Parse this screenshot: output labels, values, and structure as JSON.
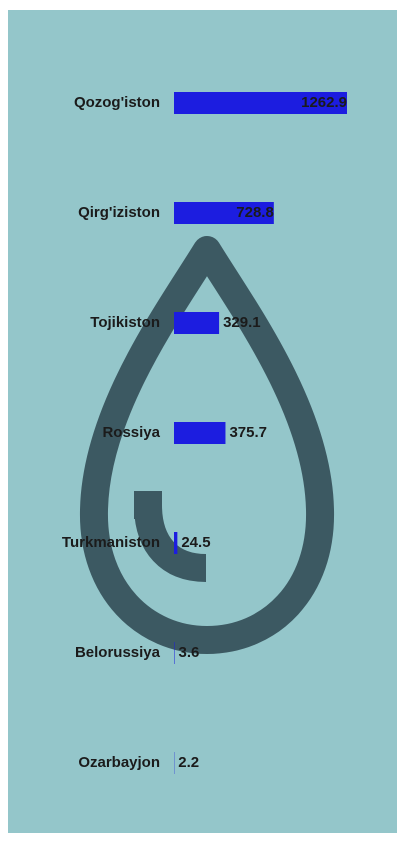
{
  "chart_data": {
    "type": "bar",
    "orientation": "horizontal",
    "categories": [
      "Qozog'iston",
      "Qirg'iziston",
      "Tojikiston",
      "Rossiya",
      "Turkmaniston",
      "Belorussiya",
      "Ozarbayjon"
    ],
    "values": [
      1262.9,
      728.8,
      329.1,
      375.7,
      24.5,
      3.6,
      2.2
    ],
    "color": "#1c1de0"
  }
}
